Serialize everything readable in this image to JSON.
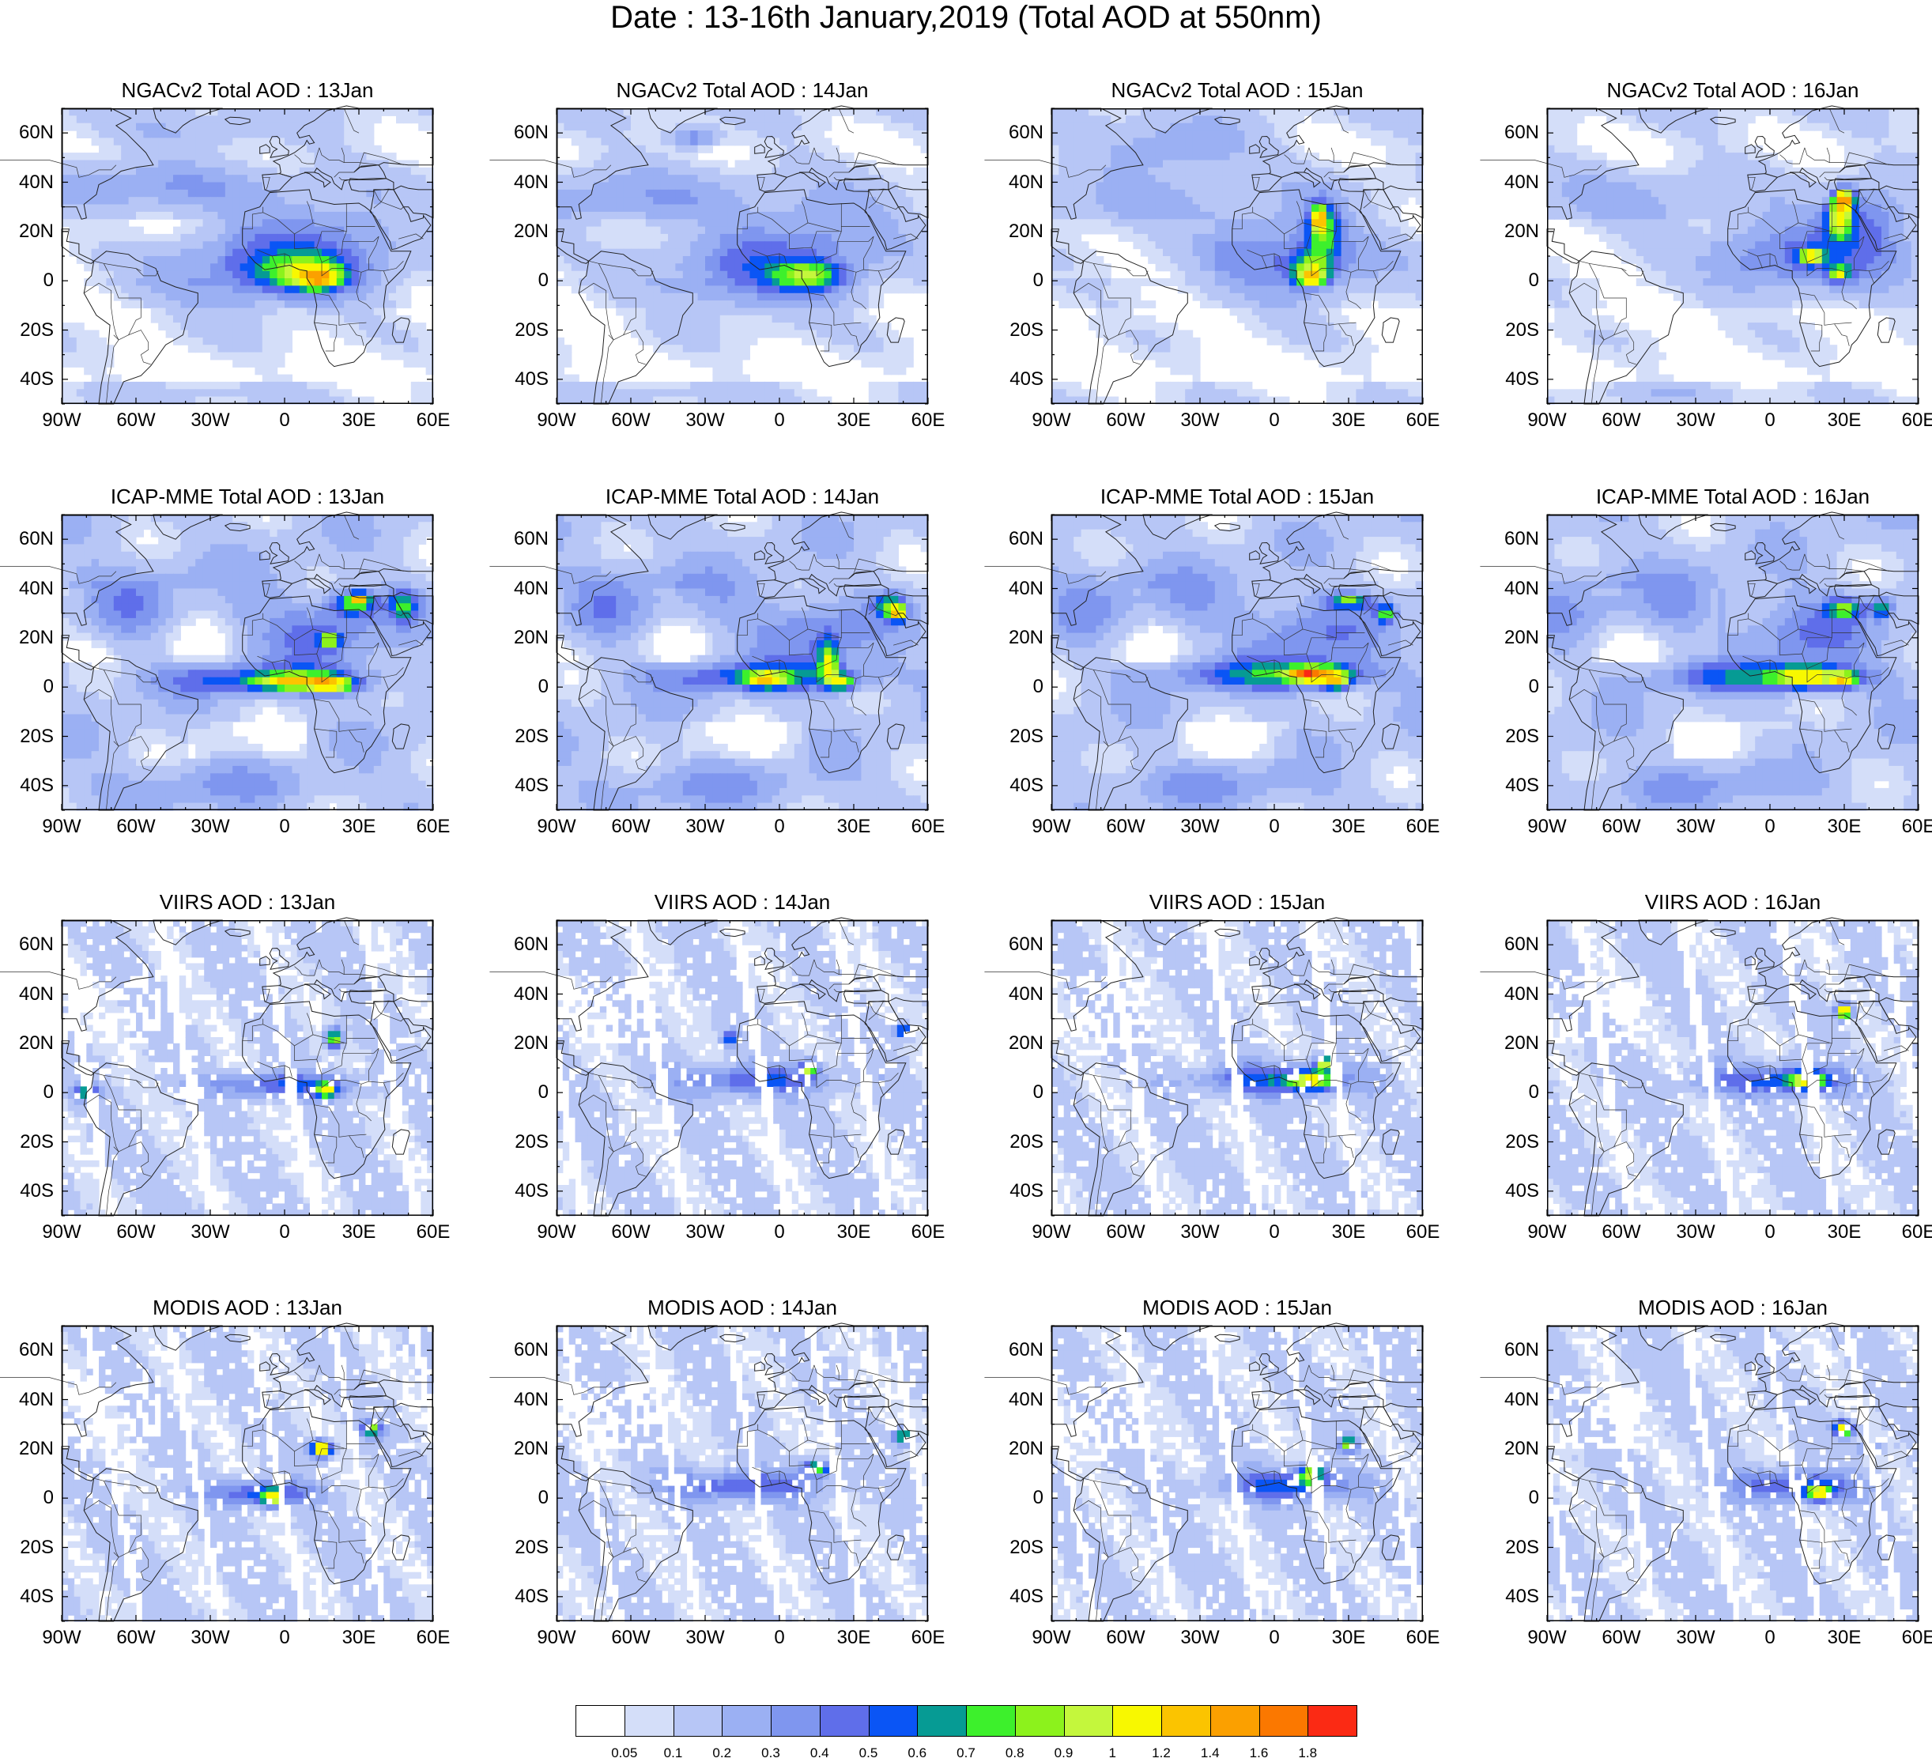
{
  "figure": {
    "title": "Date : 13-16th January,2019 (Total AOD at 550nm)",
    "lat_ticks": [
      "60N",
      "40N",
      "20N",
      "0",
      "20S",
      "40S"
    ],
    "lon_ticks": [
      "90W",
      "60W",
      "30W",
      "0",
      "30E",
      "60E"
    ],
    "lon_range": [
      -90,
      60
    ],
    "lat_range": [
      -50,
      70
    ],
    "rows": [
      {
        "source": "NGACv2",
        "titles": [
          "NGACv2 Total AOD : 13Jan",
          "NGACv2 Total AOD : 14Jan",
          "NGACv2 Total AOD : 15Jan",
          "NGACv2 Total AOD : 16Jan"
        ]
      },
      {
        "source": "ICAP-MME",
        "titles": [
          "ICAP-MME Total AOD : 13Jan",
          "ICAP-MME Total AOD : 14Jan",
          "ICAP-MME Total AOD : 15Jan",
          "ICAP-MME Total AOD : 16Jan"
        ]
      },
      {
        "source": "VIIRS",
        "titles": [
          "VIIRS AOD : 13Jan",
          "VIIRS AOD : 14Jan",
          "VIIRS AOD : 15Jan",
          "VIIRS AOD : 16Jan"
        ]
      },
      {
        "source": "MODIS",
        "titles": [
          "MODIS AOD : 13Jan",
          "MODIS AOD : 14Jan",
          "MODIS AOD : 15Jan",
          "MODIS AOD : 16Jan"
        ]
      }
    ]
  },
  "colorbar": {
    "labels": [
      "0.05",
      "0.1",
      "0.2",
      "0.3",
      "0.4",
      "0.5",
      "0.6",
      "0.7",
      "0.8",
      "0.9",
      "1",
      "1.2",
      "1.4",
      "1.6",
      "1.8"
    ],
    "colors": [
      "#ffffff",
      "#d4def9",
      "#b7c6f6",
      "#9bb0f3",
      "#7f96ef",
      "#5f6eea",
      "#0a55f5",
      "#069b94",
      "#3df02c",
      "#8cf21c",
      "#c4f73c",
      "#f8f800",
      "#fbc400",
      "#fba000",
      "#fb7800",
      "#fb2a14"
    ]
  }
}
